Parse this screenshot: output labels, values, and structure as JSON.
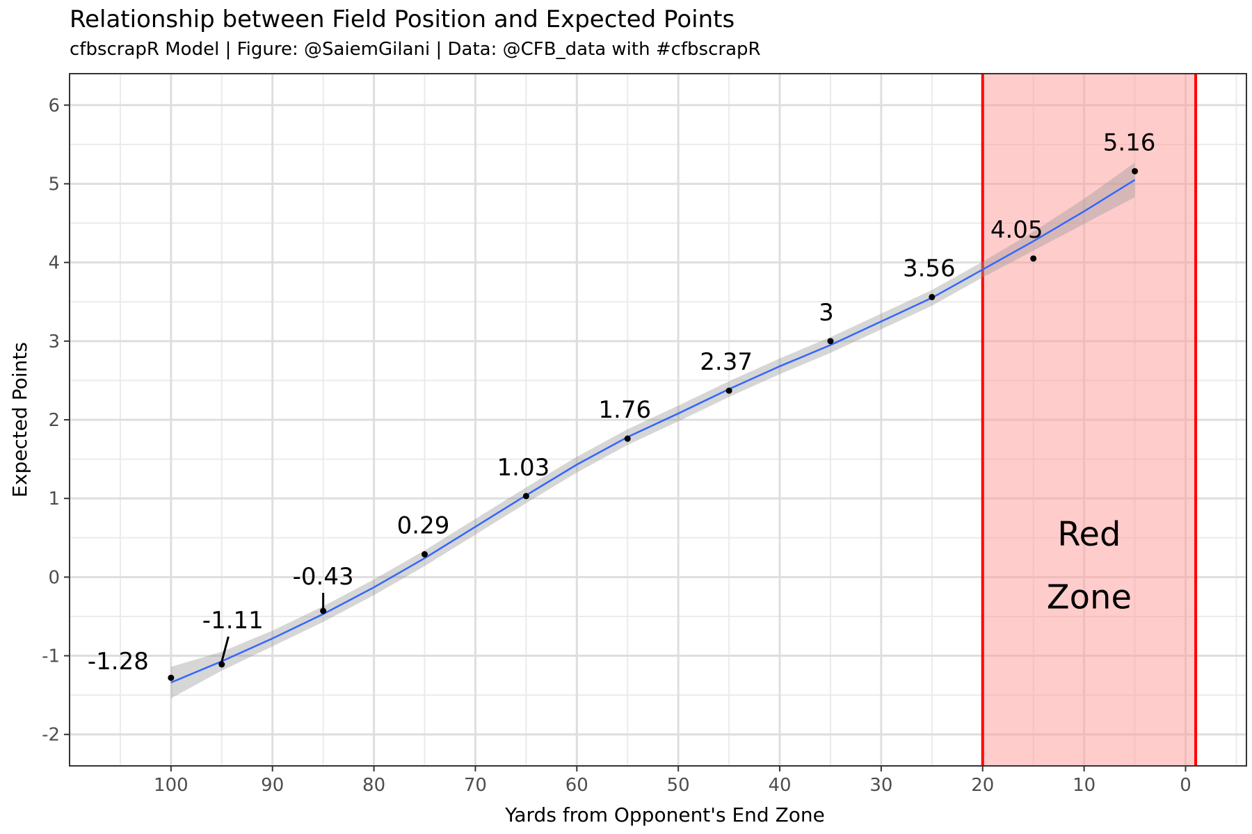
{
  "title": "Relationship between Field Position and Expected Points",
  "subtitle": "cfbscrapR Model | Figure: @SaiemGilani | Data: @CFB_data with #cfbscrapR",
  "chart_data": {
    "type": "scatter",
    "title": "Relationship between Field Position and Expected Points",
    "subtitle": "cfbscrapR Model | Figure: @SaiemGilani | Data: @CFB_data with #cfbscrapR",
    "xlabel": "Yards from Opponent's End Zone",
    "ylabel": "Expected Points",
    "x_reversed": true,
    "xlim": [
      110,
      -6
    ],
    "ylim": [
      -2.4,
      6.4
    ],
    "x_ticks": [
      100,
      90,
      80,
      70,
      60,
      50,
      40,
      30,
      20,
      10,
      0
    ],
    "y_ticks": [
      -2,
      -1,
      0,
      1,
      2,
      3,
      4,
      5,
      6
    ],
    "grid": true,
    "points": [
      {
        "x": 100,
        "y": -1.28,
        "label": "-1.28"
      },
      {
        "x": 95,
        "y": -1.11,
        "label": "-1.11"
      },
      {
        "x": 85,
        "y": -0.43,
        "label": "-0.43"
      },
      {
        "x": 75,
        "y": 0.29,
        "label": "0.29"
      },
      {
        "x": 65,
        "y": 1.03,
        "label": "1.03"
      },
      {
        "x": 55,
        "y": 1.76,
        "label": "1.76"
      },
      {
        "x": 45,
        "y": 2.37,
        "label": "2.37"
      },
      {
        "x": 35,
        "y": 3,
        "label": "3"
      },
      {
        "x": 25,
        "y": 3.56,
        "label": "3.56"
      },
      {
        "x": 15,
        "y": 4.05,
        "label": "4.05"
      },
      {
        "x": 5,
        "y": 5.16,
        "label": "5.16"
      }
    ],
    "smooth_fit": {
      "color": "#3366ff",
      "band_color": "#999999",
      "x": [
        100,
        95,
        90,
        85,
        80,
        75,
        70,
        65,
        60,
        55,
        50,
        45,
        40,
        35,
        30,
        25,
        20,
        15,
        10,
        5
      ],
      "y": [
        -1.34,
        -1.07,
        -0.78,
        -0.47,
        -0.13,
        0.24,
        0.64,
        1.04,
        1.43,
        1.78,
        2.08,
        2.39,
        2.68,
        2.95,
        3.25,
        3.55,
        3.91,
        4.27,
        4.65,
        5.05
      ],
      "band_halfwidth": [
        0.2,
        0.12,
        0.1,
        0.1,
        0.1,
        0.1,
        0.1,
        0.1,
        0.1,
        0.1,
        0.1,
        0.1,
        0.1,
        0.1,
        0.1,
        0.1,
        0.1,
        0.12,
        0.16,
        0.22
      ]
    },
    "red_zone": {
      "x_from": 20,
      "x_to": -1,
      "fill": "#ff9999",
      "line_color": "#ff0000",
      "label_lines": [
        "Red",
        "Zone"
      ],
      "label_y": [
        0.4,
        -0.4
      ]
    }
  }
}
